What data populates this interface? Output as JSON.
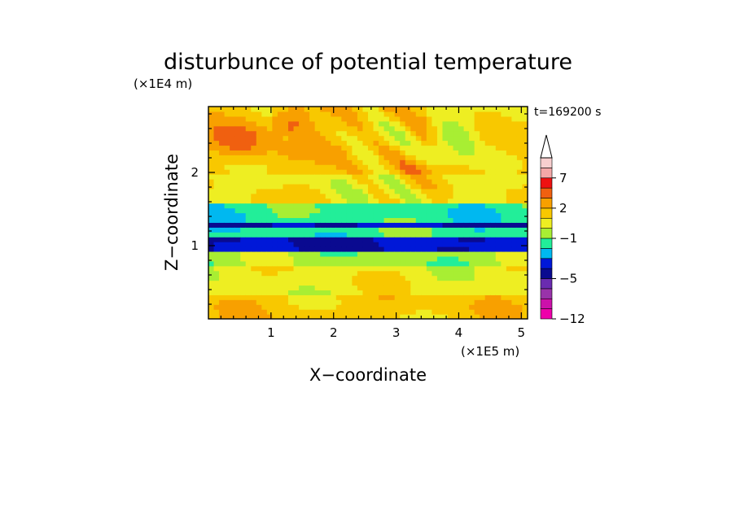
{
  "chart_data": {
    "type": "heatmap",
    "title": "disturbunce of potential temperature",
    "xlabel": "X−coordinate",
    "ylabel": "Z−coordinate",
    "x_unit": "(×1E5 m)",
    "y_unit": "(×1E4 m)",
    "time_label": "t=169200 s",
    "xlim": [
      0,
      5.1
    ],
    "ylim": [
      0,
      2.9
    ],
    "x_ticks": [
      1,
      2,
      3,
      4,
      5
    ],
    "y_ticks": [
      1,
      2
    ],
    "colorbar": {
      "levels": [
        -12,
        -11,
        -9,
        -7,
        -5,
        -4,
        -3,
        -2,
        -1,
        0,
        1,
        2,
        3,
        5,
        7,
        9,
        11
      ],
      "colors": [
        "#ee00aa",
        "#cc11aa",
        "#9933aa",
        "#6a2bb0",
        "#0a0a90",
        "#0018d8",
        "#00b8f0",
        "#22ee99",
        "#a8ee33",
        "#eeee22",
        "#f8c800",
        "#f8a000",
        "#f06010",
        "#ee1111",
        "#f4a8a8",
        "#f8cfcf"
      ],
      "tick_labels": [
        "7",
        "2",
        "−1",
        "−5",
        "−12"
      ],
      "extend": "max"
    },
    "field_zones": [
      {
        "z_range": [
          0.0,
          0.35
        ],
        "value": 1.5
      },
      {
        "z_range": [
          0.35,
          0.75
        ],
        "value": 0.6
      },
      {
        "z_range": [
          0.75,
          0.95
        ],
        "value": -0.5
      },
      {
        "z_range": [
          0.95,
          1.1
        ],
        "value": -4.0
      },
      {
        "z_range": [
          1.1,
          1.25
        ],
        "value": -1.5
      },
      {
        "z_range": [
          1.25,
          1.35
        ],
        "value": -4.0
      },
      {
        "z_range": [
          1.35,
          1.55
        ],
        "value": -1.5
      },
      {
        "z_range": [
          1.55,
          2.0
        ],
        "value": 0.8
      },
      {
        "z_range": [
          2.0,
          2.9
        ],
        "value": 1.6
      }
    ]
  }
}
